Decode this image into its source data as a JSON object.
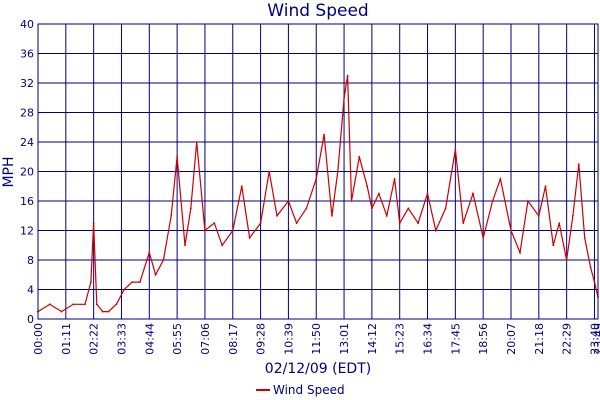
{
  "chart_data": {
    "type": "line",
    "title": "Wind Speed",
    "xlabel": "02/12/09 (EDT)",
    "ylabel": "MPH",
    "ylim": [
      0,
      40
    ],
    "yticks": [
      "0",
      "4",
      "8",
      "12",
      "16",
      "20",
      "24",
      "28",
      "32",
      "36",
      "40"
    ],
    "xlim": [
      "00:00",
      "23:49"
    ],
    "xticks": [
      "00:00",
      "01:11",
      "02:22",
      "03:33",
      "04:44",
      "05:55",
      "07:06",
      "08:17",
      "09:28",
      "10:39",
      "11:50",
      "13:01",
      "14:12",
      "15:23",
      "16:34",
      "17:45",
      "18:56",
      "20:07",
      "21:18",
      "22:29",
      "23:40",
      "23:49"
    ],
    "grid": true,
    "legend_position": "bottom-center",
    "colors": {
      "series": "#cc0000",
      "grid": "#000080",
      "text": "#000080"
    },
    "series": [
      {
        "name": "Wind Speed",
        "x": [
          "00:00",
          "00:30",
          "01:00",
          "01:30",
          "02:00",
          "02:15",
          "02:22",
          "02:30",
          "02:45",
          "03:00",
          "03:20",
          "03:40",
          "04:00",
          "04:20",
          "04:44",
          "05:00",
          "05:20",
          "05:40",
          "05:55",
          "06:15",
          "06:30",
          "06:45",
          "07:06",
          "07:30",
          "07:50",
          "08:17",
          "08:40",
          "09:00",
          "09:28",
          "09:50",
          "10:10",
          "10:39",
          "11:00",
          "11:25",
          "11:50",
          "12:10",
          "12:30",
          "12:45",
          "13:01",
          "13:10",
          "13:20",
          "13:40",
          "14:00",
          "14:12",
          "14:30",
          "14:50",
          "15:10",
          "15:23",
          "15:45",
          "16:10",
          "16:34",
          "16:55",
          "17:20",
          "17:45",
          "18:05",
          "18:30",
          "18:56",
          "19:20",
          "19:40",
          "20:07",
          "20:30",
          "20:50",
          "21:18",
          "21:35",
          "21:55",
          "22:10",
          "22:29",
          "22:45",
          "23:00",
          "23:15",
          "23:30",
          "23:40",
          "23:49"
        ],
        "values": [
          1,
          2,
          1,
          2,
          2,
          5,
          13,
          2,
          1,
          1,
          2,
          4,
          5,
          5,
          9,
          6,
          8,
          14,
          22,
          10,
          15,
          24,
          12,
          13,
          10,
          12,
          18,
          11,
          13,
          20,
          14,
          16,
          13,
          15,
          19,
          25,
          14,
          20,
          30,
          33,
          16,
          22,
          18,
          15,
          17,
          14,
          19,
          13,
          15,
          13,
          17,
          12,
          15,
          23,
          13,
          17,
          11,
          16,
          19,
          12,
          9,
          16,
          14,
          18,
          10,
          13,
          8,
          14,
          21,
          11,
          7,
          5,
          3
        ]
      }
    ]
  }
}
